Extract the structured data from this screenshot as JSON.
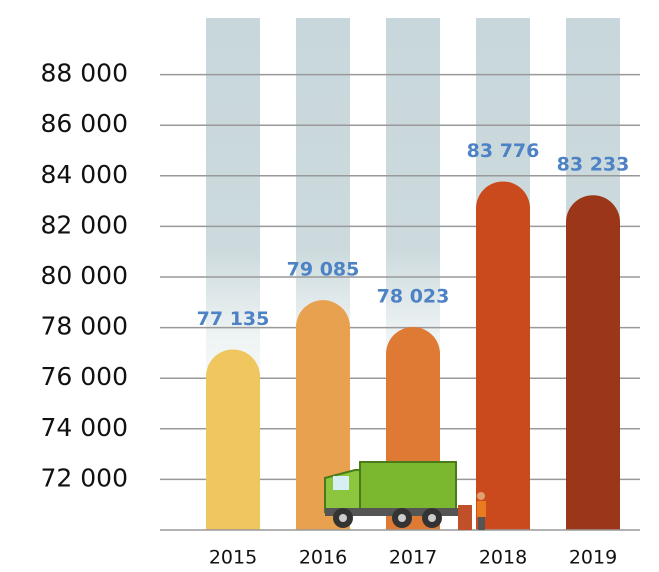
{
  "chart_data": {
    "type": "bar",
    "categories": [
      "2015",
      "2016",
      "2017",
      "2018",
      "2019"
    ],
    "values": [
      77135,
      79085,
      78023,
      83776,
      83233
    ],
    "value_labels": [
      "77 135",
      "79 085",
      "78 023",
      "83 776",
      "83 233"
    ],
    "colors": [
      "#f0c65e",
      "#e8a14e",
      "#df7a34",
      "#cb4a1d",
      "#9c3618"
    ],
    "ylim": [
      70000,
      90000
    ],
    "yticks": [
      {
        "value": 72000,
        "label": "72 000"
      },
      {
        "value": 74000,
        "label": "74 000"
      },
      {
        "value": 76000,
        "label": "76 000"
      },
      {
        "value": 78000,
        "label": "78 000"
      },
      {
        "value": 80000,
        "label": "80 000"
      },
      {
        "value": 82000,
        "label": "82 000"
      },
      {
        "value": 84000,
        "label": "84 000"
      },
      {
        "value": 86000,
        "label": "86 000"
      },
      {
        "value": 88000,
        "label": "88 000"
      }
    ],
    "grid": true
  }
}
